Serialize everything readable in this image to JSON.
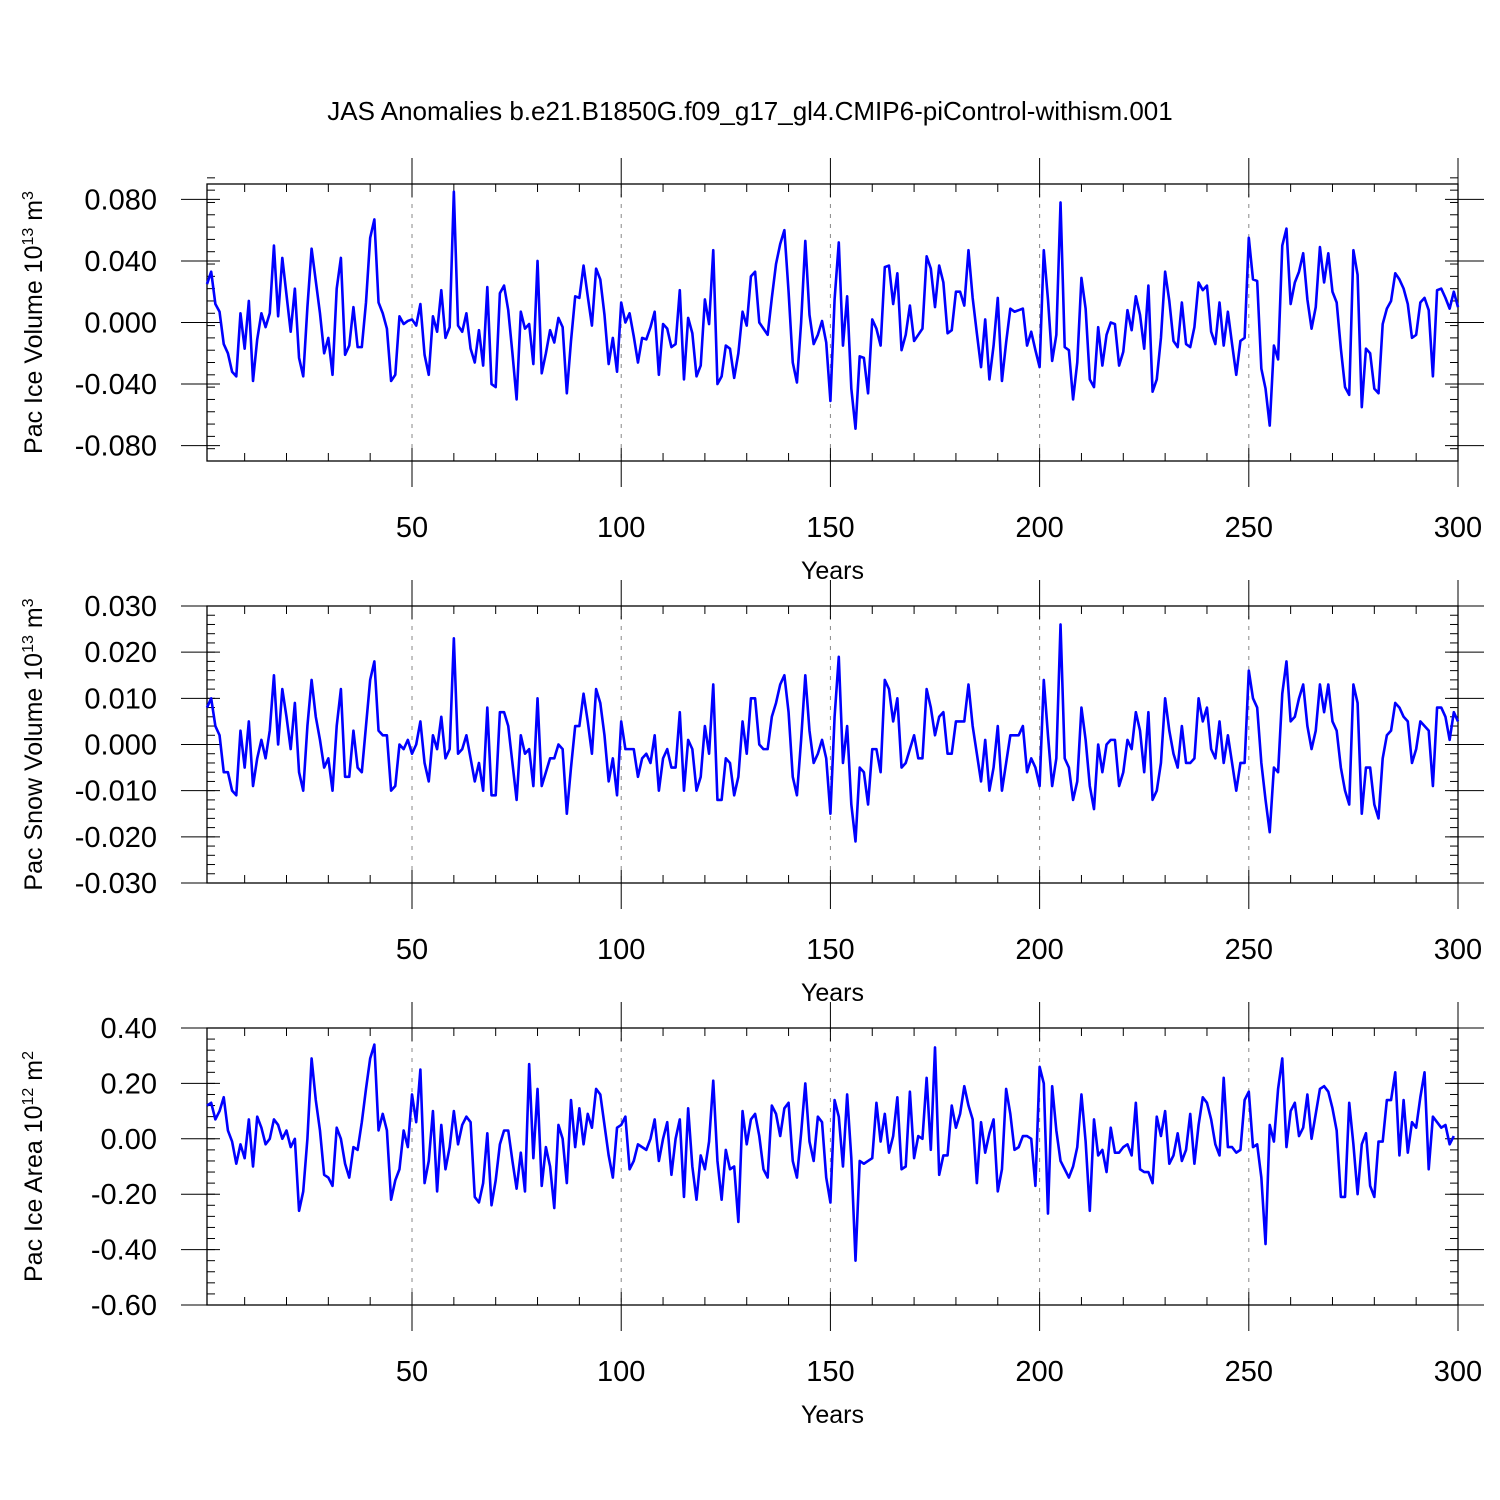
{
  "title": "JAS Anomalies b.e21.B1850G.f09_g17_gl4.CMIP6-piControl-withism.001",
  "line_color": "#0000ff",
  "chart_data": [
    {
      "type": "line",
      "ylabel_main": "Pac Ice Volume 10",
      "ylabel_exp": "13",
      "ylabel_unit": " m",
      "ylabel_unit_exp": "3",
      "xlabel": "Years",
      "xlim": [
        1,
        300
      ],
      "ylim": [
        -0.09,
        0.09
      ],
      "xticks": [
        50,
        100,
        150,
        200,
        250,
        300
      ],
      "xtick_labels": [
        "50",
        "100",
        "150",
        "200",
        "250",
        "300"
      ],
      "yticks": [
        -0.08,
        -0.04,
        0.0,
        0.04,
        0.08
      ],
      "ytick_labels": [
        "-0.080",
        "-0.040",
        "0.000",
        "0.040",
        "0.080"
      ],
      "grid_x": [
        50,
        100,
        150,
        200,
        250
      ],
      "x_start": 1,
      "values": [
        0.025,
        0.033,
        0.012,
        0.007,
        -0.014,
        -0.02,
        -0.032,
        -0.035,
        0.006,
        -0.017,
        0.014,
        -0.038,
        -0.011,
        0.006,
        -0.003,
        0.006,
        0.05,
        0.004,
        0.042,
        0.018,
        -0.006,
        0.022,
        -0.023,
        -0.035,
        0.01,
        0.048,
        0.027,
        0.006,
        -0.02,
        -0.01,
        -0.034,
        0.022,
        0.042,
        -0.021,
        -0.015,
        0.01,
        -0.016,
        -0.016,
        0.013,
        0.055,
        0.067,
        0.013,
        0.006,
        -0.004,
        -0.038,
        -0.034,
        0.004,
        -0.001,
        0.001,
        0.002,
        -0.002,
        0.012,
        -0.021,
        -0.034,
        0.004,
        -0.006,
        0.021,
        -0.01,
        -0.003,
        0.085,
        -0.002,
        -0.006,
        0.006,
        -0.017,
        -0.026,
        -0.005,
        -0.028,
        0.023,
        -0.04,
        -0.042,
        0.019,
        0.024,
        0.008,
        -0.02,
        -0.05,
        0.007,
        -0.004,
        -0.001,
        -0.027,
        0.04,
        -0.033,
        -0.02,
        -0.005,
        -0.013,
        0.003,
        -0.003,
        -0.046,
        -0.012,
        0.017,
        0.016,
        0.037,
        0.017,
        -0.002,
        0.035,
        0.028,
        0.005,
        -0.027,
        -0.01,
        -0.032,
        0.013,
        0.0,
        0.006,
        -0.009,
        -0.026,
        -0.01,
        -0.011,
        -0.003,
        0.007,
        -0.034,
        -0.001,
        -0.004,
        -0.016,
        -0.014,
        0.021,
        -0.037,
        0.003,
        -0.007,
        -0.035,
        -0.028,
        0.015,
        -0.001,
        0.047,
        -0.04,
        -0.035,
        -0.015,
        -0.017,
        -0.036,
        -0.02,
        0.007,
        -0.002,
        0.03,
        0.033,
        0.0,
        -0.004,
        -0.008,
        0.016,
        0.038,
        0.051,
        0.06,
        0.02,
        -0.026,
        -0.039,
        0.0,
        0.053,
        0.005,
        -0.014,
        -0.008,
        0.001,
        -0.013,
        -0.051,
        0.015,
        0.052,
        -0.015,
        0.017,
        -0.043,
        -0.069,
        -0.022,
        -0.023,
        -0.046,
        0.002,
        -0.004,
        -0.015,
        0.036,
        0.037,
        0.012,
        0.032,
        -0.018,
        -0.008,
        0.011,
        -0.012,
        -0.008,
        -0.004,
        0.043,
        0.035,
        0.01,
        0.037,
        0.026,
        -0.007,
        -0.005,
        0.02,
        0.02,
        0.011,
        0.047,
        0.016,
        -0.007,
        -0.029,
        0.002,
        -0.037,
        -0.015,
        0.016,
        -0.038,
        -0.013,
        0.009,
        0.007,
        0.008,
        0.009,
        -0.015,
        -0.006,
        -0.018,
        -0.029,
        0.047,
        0.015,
        -0.025,
        -0.008,
        0.078,
        -0.016,
        -0.018,
        -0.05,
        -0.026,
        0.029,
        0.009,
        -0.037,
        -0.042,
        -0.003,
        -0.028,
        -0.008,
        0.0,
        -0.001,
        -0.028,
        -0.019,
        0.008,
        -0.005,
        0.017,
        0.005,
        -0.017,
        0.024,
        -0.045,
        -0.037,
        -0.01,
        0.033,
        0.014,
        -0.012,
        -0.016,
        0.013,
        -0.014,
        -0.016,
        -0.003,
        0.026,
        0.021,
        0.024,
        -0.006,
        -0.014,
        0.013,
        -0.015,
        0.007,
        -0.014,
        -0.034,
        -0.012,
        -0.01,
        0.055,
        0.028,
        0.027,
        -0.03,
        -0.043,
        -0.067,
        -0.015,
        -0.024,
        0.05,
        0.061,
        0.012,
        0.026,
        0.033,
        0.045,
        0.015,
        -0.004,
        0.01,
        0.049,
        0.026,
        0.045,
        0.02,
        0.013,
        -0.017,
        -0.042,
        -0.047,
        0.047,
        0.031,
        -0.055,
        -0.017,
        -0.02,
        -0.043,
        -0.046,
        -0.001,
        0.009,
        0.014,
        0.032,
        0.028,
        0.022,
        0.012,
        -0.01,
        -0.008,
        0.013,
        0.016,
        0.008,
        -0.035,
        0.021,
        0.022,
        0.016,
        0.009,
        0.02,
        0.01
      ]
    },
    {
      "type": "line",
      "ylabel_main": "Pac Snow Volume 10",
      "ylabel_exp": "13",
      "ylabel_unit": " m",
      "ylabel_unit_exp": "3",
      "xlabel": "Years",
      "xlim": [
        1,
        300
      ],
      "ylim": [
        -0.03,
        0.03
      ],
      "xticks": [
        50,
        100,
        150,
        200,
        250,
        300
      ],
      "xtick_labels": [
        "50",
        "100",
        "150",
        "200",
        "250",
        "300"
      ],
      "yticks": [
        -0.03,
        -0.02,
        -0.01,
        0.0,
        0.01,
        0.02,
        0.03
      ],
      "ytick_labels": [
        "-0.030",
        "-0.020",
        "-0.010",
        "0.000",
        "0.010",
        "0.020",
        "0.030"
      ],
      "grid_x": [
        50,
        100,
        150,
        200,
        250
      ],
      "x_start": 1,
      "values": [
        0.008,
        0.01,
        0.004,
        0.002,
        -0.006,
        -0.006,
        -0.01,
        -0.011,
        0.003,
        -0.005,
        0.005,
        -0.009,
        -0.003,
        0.001,
        -0.003,
        0.003,
        0.015,
        0.0,
        0.012,
        0.006,
        -0.001,
        0.009,
        -0.006,
        -0.01,
        0.004,
        0.014,
        0.006,
        0.001,
        -0.005,
        -0.003,
        -0.01,
        0.004,
        0.012,
        -0.007,
        -0.007,
        0.003,
        -0.005,
        -0.006,
        0.004,
        0.014,
        0.018,
        0.003,
        0.002,
        0.002,
        -0.01,
        -0.009,
        0.0,
        -0.001,
        0.001,
        -0.002,
        0.0,
        0.005,
        -0.004,
        -0.008,
        0.002,
        -0.001,
        0.006,
        -0.003,
        -0.001,
        0.023,
        -0.002,
        -0.001,
        0.002,
        -0.003,
        -0.008,
        -0.004,
        -0.01,
        0.008,
        -0.011,
        -0.011,
        0.007,
        0.007,
        0.004,
        -0.004,
        -0.012,
        0.002,
        -0.002,
        -0.001,
        -0.009,
        0.01,
        -0.009,
        -0.006,
        -0.003,
        -0.003,
        0.0,
        -0.001,
        -0.015,
        -0.005,
        0.004,
        0.004,
        0.011,
        0.005,
        -0.002,
        0.012,
        0.009,
        0.002,
        -0.008,
        -0.003,
        -0.011,
        0.005,
        -0.001,
        -0.001,
        -0.001,
        -0.007,
        -0.003,
        -0.002,
        -0.004,
        0.002,
        -0.01,
        -0.003,
        -0.001,
        -0.005,
        -0.005,
        0.007,
        -0.01,
        0.001,
        -0.001,
        -0.01,
        -0.007,
        0.004,
        -0.002,
        0.013,
        -0.012,
        -0.012,
        -0.003,
        -0.004,
        -0.011,
        -0.007,
        0.005,
        -0.002,
        0.01,
        0.01,
        0.0,
        -0.001,
        -0.001,
        0.006,
        0.009,
        0.013,
        0.015,
        0.007,
        -0.007,
        -0.011,
        0.001,
        0.015,
        0.003,
        -0.004,
        -0.002,
        0.001,
        -0.003,
        -0.015,
        0.006,
        0.019,
        -0.004,
        0.004,
        -0.013,
        -0.021,
        -0.005,
        -0.006,
        -0.013,
        -0.001,
        -0.001,
        -0.006,
        0.014,
        0.012,
        0.005,
        0.01,
        -0.005,
        -0.004,
        -0.001,
        0.002,
        -0.003,
        -0.003,
        0.012,
        0.008,
        0.002,
        0.006,
        0.007,
        -0.002,
        -0.002,
        0.005,
        0.005,
        0.005,
        0.013,
        0.004,
        -0.002,
        -0.008,
        0.001,
        -0.01,
        -0.005,
        0.004,
        -0.01,
        -0.004,
        0.002,
        0.002,
        0.002,
        0.004,
        -0.006,
        -0.003,
        -0.005,
        -0.009,
        0.014,
        0.002,
        -0.009,
        -0.003,
        0.026,
        -0.003,
        -0.005,
        -0.012,
        -0.008,
        0.008,
        0.001,
        -0.009,
        -0.014,
        0.0,
        -0.006,
        0.0,
        0.001,
        0.001,
        -0.009,
        -0.006,
        0.001,
        -0.001,
        0.007,
        0.003,
        -0.006,
        0.007,
        -0.012,
        -0.01,
        -0.004,
        0.01,
        0.003,
        -0.002,
        -0.005,
        0.004,
        -0.004,
        -0.004,
        -0.003,
        0.01,
        0.005,
        0.008,
        -0.001,
        -0.003,
        0.005,
        -0.004,
        0.002,
        -0.004,
        -0.01,
        -0.004,
        -0.004,
        0.016,
        0.01,
        0.008,
        -0.004,
        -0.012,
        -0.019,
        -0.005,
        -0.006,
        0.011,
        0.018,
        0.005,
        0.006,
        0.01,
        0.013,
        0.004,
        -0.001,
        0.003,
        0.013,
        0.007,
        0.013,
        0.005,
        0.003,
        -0.005,
        -0.01,
        -0.013,
        0.013,
        0.009,
        -0.015,
        -0.005,
        -0.005,
        -0.013,
        -0.016,
        -0.003,
        0.002,
        0.003,
        0.009,
        0.008,
        0.006,
        0.005,
        -0.004,
        -0.001,
        0.005,
        0.004,
        0.003,
        -0.009,
        0.008,
        0.008,
        0.006,
        0.001,
        0.007,
        0.005
      ]
    },
    {
      "type": "line",
      "ylabel_main": "Pac Ice Area 10",
      "ylabel_exp": "12",
      "ylabel_unit": " m",
      "ylabel_unit_exp": "2",
      "xlabel": "Years",
      "xlim": [
        1,
        300
      ],
      "ylim": [
        -0.6,
        0.4
      ],
      "xticks": [
        50,
        100,
        150,
        200,
        250,
        300
      ],
      "xtick_labels": [
        "50",
        "100",
        "150",
        "200",
        "250",
        "300"
      ],
      "yticks": [
        -0.6,
        -0.4,
        -0.2,
        0.0,
        0.2,
        0.4
      ],
      "ytick_labels": [
        "-0.60",
        "-0.40",
        "-0.20",
        "0.00",
        "0.20",
        "0.40"
      ],
      "grid_x": [
        50,
        100,
        150,
        200,
        250
      ],
      "x_start": 1,
      "values": [
        0.12,
        0.13,
        0.07,
        0.1,
        0.15,
        0.03,
        -0.01,
        -0.09,
        -0.02,
        -0.07,
        0.07,
        -0.1,
        0.08,
        0.04,
        -0.02,
        0.0,
        0.07,
        0.05,
        0.0,
        0.03,
        -0.03,
        0.0,
        -0.26,
        -0.19,
        0.0,
        0.29,
        0.14,
        0.03,
        -0.13,
        -0.14,
        -0.17,
        0.04,
        0.0,
        -0.09,
        -0.14,
        -0.03,
        -0.04,
        0.06,
        0.18,
        0.29,
        0.34,
        0.03,
        0.09,
        0.03,
        -0.22,
        -0.15,
        -0.11,
        0.03,
        -0.03,
        0.16,
        0.06,
        0.25,
        -0.16,
        -0.08,
        0.1,
        -0.19,
        0.05,
        -0.11,
        -0.03,
        0.1,
        -0.02,
        0.05,
        0.08,
        0.06,
        -0.21,
        -0.23,
        -0.16,
        0.02,
        -0.24,
        -0.15,
        -0.02,
        0.03,
        0.03,
        -0.08,
        -0.18,
        -0.05,
        -0.19,
        0.27,
        -0.07,
        0.18,
        -0.17,
        -0.03,
        -0.1,
        -0.25,
        0.05,
        0.0,
        -0.16,
        0.14,
        -0.03,
        0.11,
        -0.02,
        0.09,
        0.04,
        0.18,
        0.16,
        0.05,
        -0.06,
        -0.14,
        0.04,
        0.05,
        0.08,
        -0.11,
        -0.08,
        -0.02,
        -0.03,
        -0.04,
        0.0,
        0.07,
        -0.08,
        0.0,
        0.06,
        -0.13,
        0.0,
        0.07,
        -0.21,
        0.11,
        -0.1,
        -0.22,
        -0.06,
        -0.11,
        -0.01,
        0.21,
        -0.08,
        -0.22,
        -0.04,
        -0.11,
        -0.1,
        -0.3,
        0.1,
        -0.02,
        0.07,
        0.09,
        0.01,
        -0.11,
        -0.14,
        0.12,
        0.09,
        0.01,
        0.11,
        0.13,
        -0.08,
        -0.14,
        0.02,
        0.2,
        -0.01,
        -0.08,
        0.08,
        0.06,
        -0.14,
        -0.23,
        0.14,
        0.08,
        -0.1,
        0.16,
        -0.07,
        -0.44,
        -0.08,
        -0.09,
        -0.08,
        -0.07,
        0.13,
        -0.01,
        0.09,
        -0.05,
        0.01,
        0.15,
        -0.11,
        -0.1,
        0.17,
        -0.07,
        0.01,
        0.0,
        0.22,
        -0.04,
        0.33,
        -0.13,
        -0.06,
        -0.06,
        0.12,
        0.04,
        0.09,
        0.19,
        0.12,
        0.07,
        -0.16,
        0.06,
        -0.05,
        0.02,
        0.07,
        -0.19,
        -0.11,
        0.18,
        0.09,
        -0.04,
        -0.03,
        0.01,
        0.01,
        0.0,
        -0.17,
        0.26,
        0.2,
        -0.27,
        0.19,
        0.03,
        -0.08,
        -0.11,
        -0.14,
        -0.1,
        -0.03,
        0.16,
        -0.01,
        -0.26,
        0.07,
        -0.06,
        -0.04,
        -0.12,
        0.04,
        -0.05,
        -0.05,
        -0.03,
        -0.02,
        -0.06,
        0.13,
        -0.11,
        -0.12,
        -0.12,
        -0.16,
        0.08,
        0.01,
        0.1,
        -0.09,
        -0.06,
        0.02,
        -0.08,
        -0.04,
        0.09,
        -0.09,
        0.05,
        0.15,
        0.13,
        0.07,
        -0.02,
        -0.06,
        0.22,
        -0.03,
        -0.03,
        -0.05,
        -0.04,
        0.14,
        0.17,
        -0.03,
        -0.02,
        -0.14,
        -0.38,
        0.05,
        -0.01,
        0.18,
        0.29,
        -0.03,
        0.1,
        0.13,
        0.01,
        0.04,
        0.16,
        0.0,
        0.09,
        0.18,
        0.19,
        0.17,
        0.11,
        0.03,
        -0.21,
        -0.21,
        0.13,
        -0.02,
        -0.2,
        -0.02,
        0.02,
        -0.17,
        -0.21,
        -0.01,
        -0.01,
        0.14,
        0.14,
        0.24,
        -0.06,
        0.14,
        -0.05,
        0.06,
        0.04,
        0.15,
        0.24,
        -0.11,
        0.08,
        0.06,
        0.04,
        0.05,
        -0.02,
        0.01
      ]
    }
  ]
}
